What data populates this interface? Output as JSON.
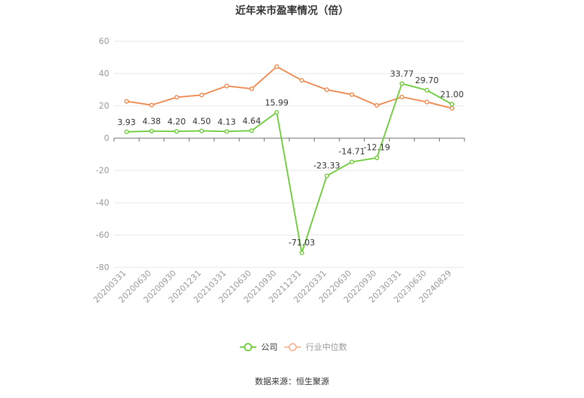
{
  "chart_data": {
    "type": "line",
    "title": "近年来市盈率情况（倍）",
    "source": "数据来源：恒生聚源",
    "categories": [
      "20200331",
      "20200630",
      "20200930",
      "20201231",
      "20210331",
      "20210630",
      "20210930",
      "20211231",
      "20220331",
      "20220630",
      "20220930",
      "20230331",
      "20230630",
      "20240829"
    ],
    "ylim": [
      -80,
      60
    ],
    "yticks": [
      -80,
      -60,
      -40,
      -20,
      0,
      20,
      40,
      60
    ],
    "grid": true,
    "legend_position": "bottom-center",
    "series": [
      {
        "name": "公司",
        "color": "#6dcc3a",
        "values": [
          3.93,
          4.38,
          4.2,
          4.5,
          4.13,
          4.64,
          15.99,
          -71.03,
          -23.33,
          -14.71,
          -12.19,
          33.77,
          29.7,
          21.0
        ],
        "labels": [
          "3.93",
          "4.38",
          "4.20",
          "4.50",
          "4.13",
          "4.64",
          "15.99",
          "-71.03",
          "-23.33",
          "-14.71",
          "-12.19",
          "33.77",
          "29.70",
          "21.00"
        ]
      },
      {
        "name": "行业中位数",
        "color": "#f0894f",
        "values": [
          22.8,
          20.5,
          25.3,
          26.7,
          32.3,
          30.6,
          44.3,
          35.8,
          30.0,
          27.0,
          20.3,
          25.5,
          22.4,
          18.5
        ]
      }
    ]
  }
}
